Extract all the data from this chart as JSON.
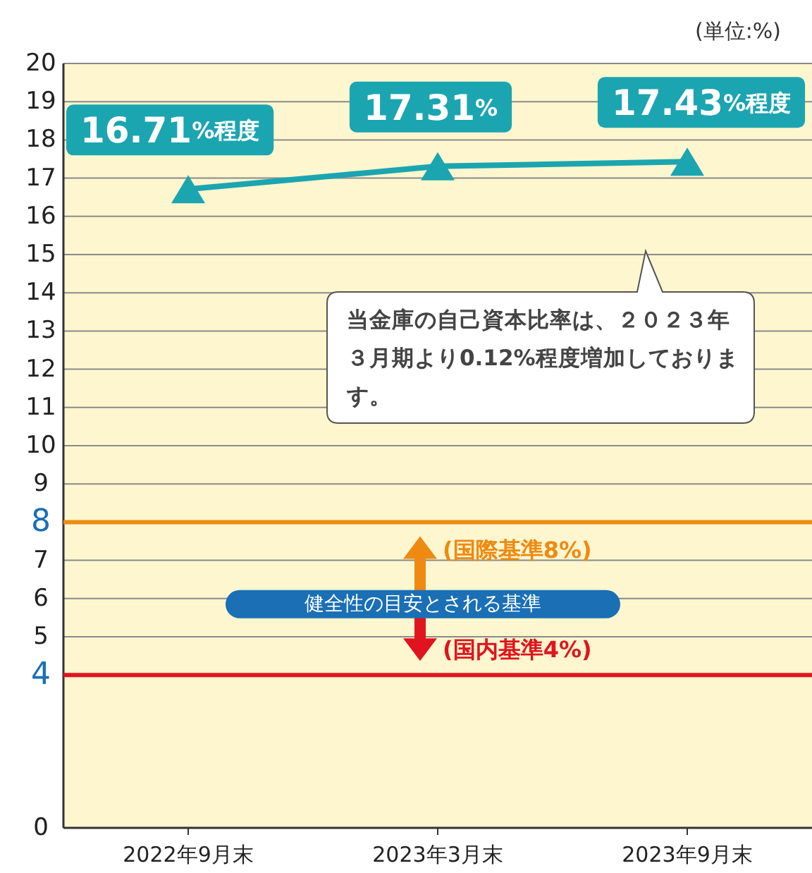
{
  "chart_data": {
    "type": "line",
    "categories": [
      "2022年9月末",
      "2023年3月末",
      "2023年9月末"
    ],
    "series": [
      {
        "color": "#1ba5b0",
        "values": [
          16.71,
          17.31,
          17.43
        ],
        "value_labels": [
          "16.71%程度",
          "17.31%",
          "17.43%程度"
        ]
      }
    ],
    "ylim": [
      0,
      20
    ],
    "yticks": [
      0,
      4,
      5,
      6,
      7,
      8,
      9,
      10,
      11,
      12,
      13,
      14,
      15,
      16,
      17,
      18,
      19,
      20
    ],
    "ref_lines": [
      {
        "axis": "y",
        "value": 8,
        "label": "(国際基準8%)",
        "color": "#ee8a12"
      },
      {
        "axis": "y",
        "value": 4,
        "label": "(国内基準4%)",
        "color": "#e0141e"
      }
    ],
    "annotations": [
      "(単位:%)",
      "当金庫の自己資本比率は、２０２３年３月期より0.12%程度増加しております。",
      "健全性の目安とされる基準"
    ],
    "grid": "y",
    "marker": "triangle",
    "line_style": "solid"
  }
}
